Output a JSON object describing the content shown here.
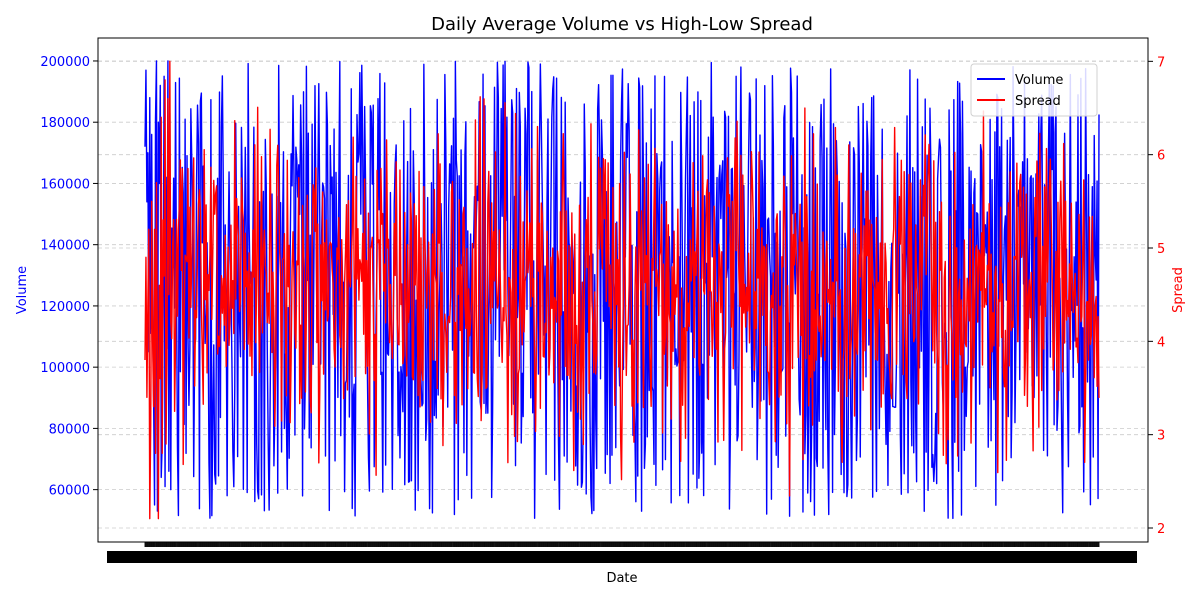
{
  "chart_data": {
    "type": "line",
    "title": "Daily Average Volume vs High-Low Spread",
    "xlabel": "Date",
    "y_left_label": "Volume",
    "y_right_label": "Spread",
    "y_left_ticks": [
      60000,
      80000,
      100000,
      120000,
      140000,
      160000,
      180000,
      200000
    ],
    "y_right_ticks": [
      2,
      3,
      4,
      5,
      6,
      7
    ],
    "y_left_range": [
      42900,
      207500
    ],
    "y_right_range": [
      1.85,
      7.25
    ],
    "grid": true,
    "legend_position": "top-right",
    "x_tick_labels_overlapping": true,
    "point_count": 1000,
    "series": [
      {
        "name": "Volume",
        "axis": "left",
        "color": "#0000ff",
        "min": 50500,
        "max": 200000,
        "sample_values": [
          172000,
          197000,
          154000,
          170000,
          105000,
          188000,
          111000,
          176000,
          117000,
          90000,
          55000,
          181000,
          200000,
          53000,
          180000,
          160000,
          192000,
          64000,
          75000,
          118000,
          195000,
          61000,
          162000,
          106000,
          200000,
          66000,
          183000,
          60000
        ]
      },
      {
        "name": "Spread",
        "axis": "right",
        "color": "#ff0000",
        "min": 2.1,
        "max": 7.0,
        "sample_values": [
          3.8,
          4.9,
          3.4,
          4.4,
          5.2,
          2.1,
          3.1,
          5.5,
          4.0,
          3.3,
          5.2,
          2.8,
          5.7,
          3.9,
          2.1,
          4.6,
          3.6,
          6.4,
          2.8,
          5.3,
          4.7,
          6.8,
          2.9,
          3.8,
          6.6,
          4.5,
          7.0,
          4.2
        ]
      }
    ]
  }
}
